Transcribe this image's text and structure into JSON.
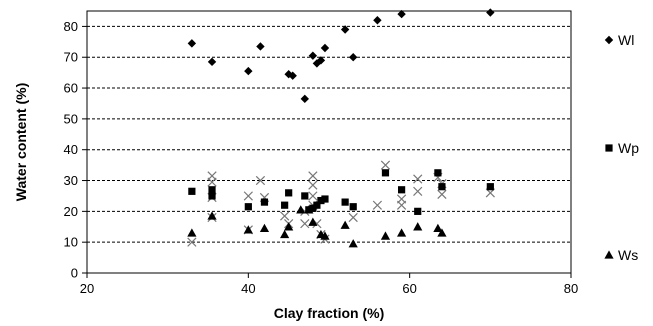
{
  "chart_data": {
    "type": "scatter",
    "xlabel": "Clay fraction (%)",
    "ylabel": "Water content (%)",
    "xlim": [
      20,
      80
    ],
    "ylim": [
      0,
      85
    ],
    "xticks": [
      20,
      40,
      60,
      80
    ],
    "yticks": [
      0,
      10,
      20,
      30,
      40,
      50,
      60,
      70,
      80
    ],
    "grid": "horizontal dashed",
    "legend": "right",
    "series": [
      {
        "name": "Wl",
        "marker": "diamond",
        "points": [
          [
            33,
            74.5
          ],
          [
            35.5,
            68.5
          ],
          [
            40,
            65.5
          ],
          [
            41.5,
            73.5
          ],
          [
            45,
            64.5
          ],
          [
            45.5,
            64
          ],
          [
            47,
            56.5
          ],
          [
            48,
            70.5
          ],
          [
            48.5,
            68
          ],
          [
            49,
            69
          ],
          [
            49.5,
            73
          ],
          [
            52,
            79
          ],
          [
            53,
            70
          ],
          [
            56,
            82
          ],
          [
            59,
            84
          ],
          [
            70,
            84.5
          ]
        ]
      },
      {
        "name": "Wp",
        "marker": "square",
        "points": [
          [
            33,
            26.5
          ],
          [
            35.5,
            27
          ],
          [
            35.5,
            25
          ],
          [
            40,
            21.5
          ],
          [
            42,
            23
          ],
          [
            44.5,
            22
          ],
          [
            45,
            26
          ],
          [
            47,
            25
          ],
          [
            47.5,
            20.5
          ],
          [
            48,
            21
          ],
          [
            48.5,
            22
          ],
          [
            49,
            23.5
          ],
          [
            49.5,
            24
          ],
          [
            52,
            23
          ],
          [
            53,
            21.5
          ],
          [
            57,
            32.5
          ],
          [
            59,
            27
          ],
          [
            61,
            20
          ],
          [
            63.5,
            32.5
          ],
          [
            64,
            28
          ],
          [
            70,
            28
          ]
        ]
      },
      {
        "name": "Ws",
        "marker": "triangle",
        "points": [
          [
            33,
            13
          ],
          [
            35.5,
            18.5
          ],
          [
            40,
            14
          ],
          [
            42,
            14.5
          ],
          [
            44.5,
            12.5
          ],
          [
            45,
            15
          ],
          [
            46.5,
            20.5
          ],
          [
            47.5,
            20.5
          ],
          [
            48,
            16.5
          ],
          [
            49,
            12.5
          ],
          [
            49.5,
            12
          ],
          [
            52,
            15.5
          ],
          [
            53,
            9.5
          ],
          [
            57,
            12
          ],
          [
            59,
            13
          ],
          [
            61,
            15
          ],
          [
            63.5,
            14.5
          ],
          [
            64,
            13
          ]
        ]
      },
      {
        "marker": "x",
        "points": [
          [
            33,
            10
          ],
          [
            35.5,
            31.5
          ],
          [
            35.5,
            29.5
          ],
          [
            35.5,
            24.5
          ],
          [
            35.5,
            18
          ],
          [
            40,
            25
          ],
          [
            40,
            14
          ],
          [
            41.5,
            30
          ],
          [
            42,
            24.5
          ],
          [
            44.5,
            18.5
          ],
          [
            45,
            16
          ],
          [
            47,
            20
          ],
          [
            47,
            16
          ],
          [
            48,
            31.5
          ],
          [
            48,
            28.5
          ],
          [
            48,
            25
          ],
          [
            48,
            22
          ],
          [
            48.5,
            16
          ],
          [
            49,
            12.5
          ],
          [
            49.5,
            11
          ],
          [
            53,
            18
          ],
          [
            57,
            35
          ],
          [
            56,
            22
          ],
          [
            59,
            24
          ],
          [
            59,
            22
          ],
          [
            61,
            30.5
          ],
          [
            61,
            26.5
          ],
          [
            63.5,
            31
          ],
          [
            64,
            25.5
          ],
          [
            64,
            29
          ],
          [
            70,
            26
          ]
        ]
      }
    ]
  }
}
